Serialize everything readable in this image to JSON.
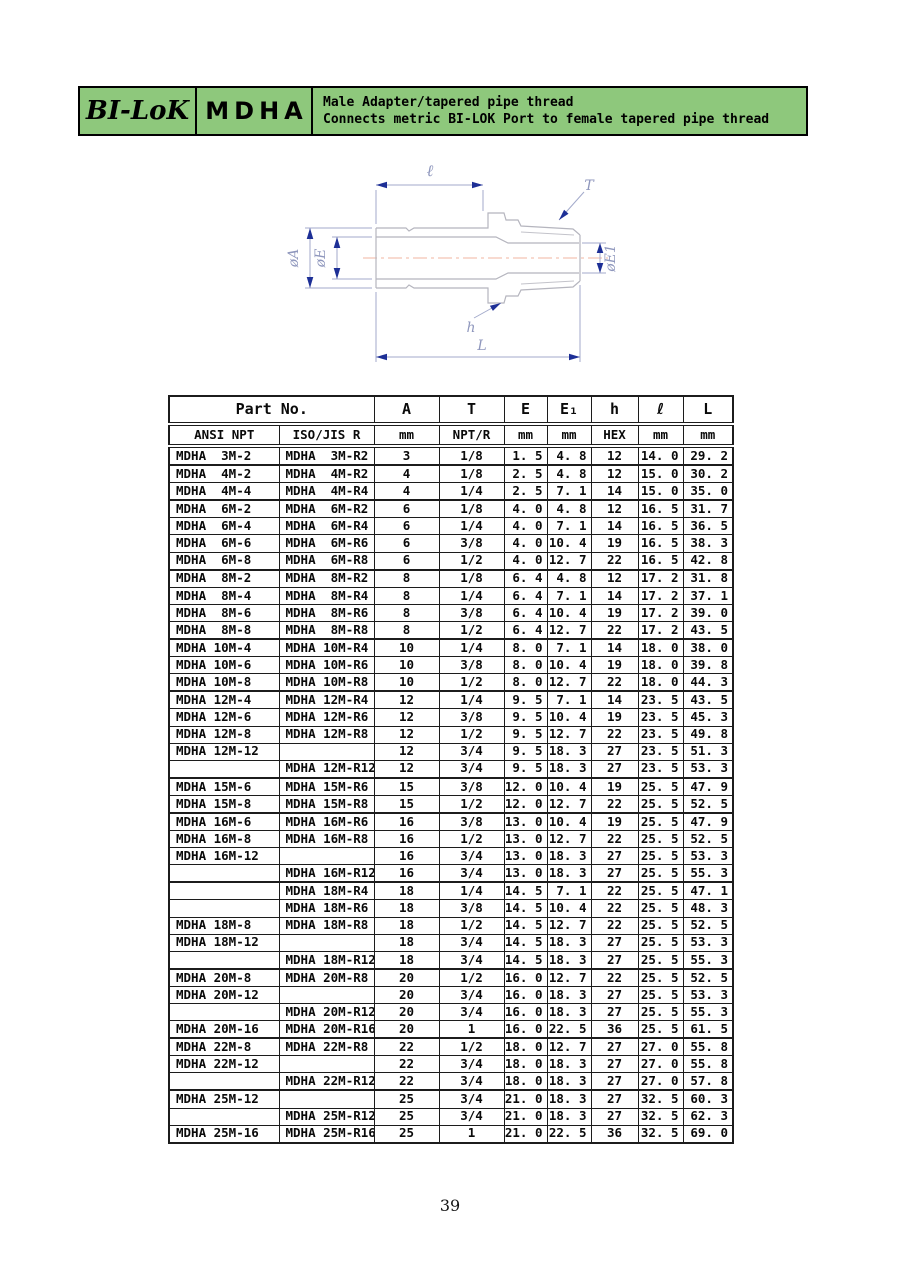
{
  "banner": {
    "brand": "BI-LoK",
    "model": "MDHA",
    "title_line1": "Male Adapter/tapered pipe thread",
    "title_line2": "Connects metric BI-LOK Port to female tapered pipe thread",
    "bg_color": "#8ec87c"
  },
  "drawing": {
    "labels": {
      "ell": "ℓ",
      "T": "T",
      "dA": "øA",
      "dE": "øE",
      "dE1": "øE1",
      "h": "h",
      "L": "L"
    },
    "colors": {
      "outline": "#b5b5be",
      "dimension": "#a3aacb",
      "arrow": "#1d2f96",
      "label": "#8f97bd",
      "centerline": "#f2b5a0"
    }
  },
  "table": {
    "header": {
      "part_no": "Part No.",
      "columns": [
        "A",
        "T",
        "E",
        "E₁",
        "h",
        "ℓ",
        "L"
      ],
      "subheader": [
        "ANSI NPT",
        "ISO/JIS R",
        "mm",
        "NPT/R",
        "mm",
        "mm",
        "HEX",
        "mm",
        "mm"
      ]
    },
    "groups": [
      [
        [
          "MDHA  3M-2",
          "MDHA  3M-R2",
          "3",
          "1/8",
          "1. 5",
          "4. 8",
          "12",
          "14. 0",
          "29. 2"
        ]
      ],
      [
        [
          "MDHA  4M-2",
          "MDHA  4M-R2",
          "4",
          "1/8",
          "2. 5",
          "4. 8",
          "12",
          "15. 0",
          "30. 2"
        ],
        [
          "MDHA  4M-4",
          "MDHA  4M-R4",
          "4",
          "1/4",
          "2. 5",
          "7. 1",
          "14",
          "15. 0",
          "35. 0"
        ]
      ],
      [
        [
          "MDHA  6M-2",
          "MDHA  6M-R2",
          "6",
          "1/8",
          "4. 0",
          "4. 8",
          "12",
          "16. 5",
          "31. 7"
        ],
        [
          "MDHA  6M-4",
          "MDHA  6M-R4",
          "6",
          "1/4",
          "4. 0",
          "7. 1",
          "14",
          "16. 5",
          "36. 5"
        ],
        [
          "MDHA  6M-6",
          "MDHA  6M-R6",
          "6",
          "3/8",
          "4. 0",
          "10. 4",
          "19",
          "16. 5",
          "38. 3"
        ],
        [
          "MDHA  6M-8",
          "MDHA  6M-R8",
          "6",
          "1/2",
          "4. 0",
          "12. 7",
          "22",
          "16. 5",
          "42. 8"
        ]
      ],
      [
        [
          "MDHA  8M-2",
          "MDHA  8M-R2",
          "8",
          "1/8",
          "6. 4",
          "4. 8",
          "12",
          "17. 2",
          "31. 8"
        ],
        [
          "MDHA  8M-4",
          "MDHA  8M-R4",
          "8",
          "1/4",
          "6. 4",
          "7. 1",
          "14",
          "17. 2",
          "37. 1"
        ],
        [
          "MDHA  8M-6",
          "MDHA  8M-R6",
          "8",
          "3/8",
          "6. 4",
          "10. 4",
          "19",
          "17. 2",
          "39. 0"
        ],
        [
          "MDHA  8M-8",
          "MDHA  8M-R8",
          "8",
          "1/2",
          "6. 4",
          "12. 7",
          "22",
          "17. 2",
          "43. 5"
        ]
      ],
      [
        [
          "MDHA 10M-4",
          "MDHA 10M-R4",
          "10",
          "1/4",
          "8. 0",
          "7. 1",
          "14",
          "18. 0",
          "38. 0"
        ],
        [
          "MDHA 10M-6",
          "MDHA 10M-R6",
          "10",
          "3/8",
          "8. 0",
          "10. 4",
          "19",
          "18. 0",
          "39. 8"
        ],
        [
          "MDHA 10M-8",
          "MDHA 10M-R8",
          "10",
          "1/2",
          "8. 0",
          "12. 7",
          "22",
          "18. 0",
          "44. 3"
        ]
      ],
      [
        [
          "MDHA 12M-4",
          "MDHA 12M-R4",
          "12",
          "1/4",
          "9. 5",
          "7. 1",
          "14",
          "23. 5",
          "43. 5"
        ],
        [
          "MDHA 12M-6",
          "MDHA 12M-R6",
          "12",
          "3/8",
          "9. 5",
          "10. 4",
          "19",
          "23. 5",
          "45. 3"
        ],
        [
          "MDHA 12M-8",
          "MDHA 12M-R8",
          "12",
          "1/2",
          "9. 5",
          "12. 7",
          "22",
          "23. 5",
          "49. 8"
        ],
        [
          "MDHA 12M-12",
          "",
          "12",
          "3/4",
          "9. 5",
          "18. 3",
          "27",
          "23. 5",
          "51. 3"
        ],
        [
          "",
          "MDHA 12M-R12",
          "12",
          "3/4",
          "9. 5",
          "18. 3",
          "27",
          "23. 5",
          "53. 3"
        ]
      ],
      [
        [
          "MDHA 15M-6",
          "MDHA 15M-R6",
          "15",
          "3/8",
          "12. 0",
          "10. 4",
          "19",
          "25. 5",
          "47. 9"
        ],
        [
          "MDHA 15M-8",
          "MDHA 15M-R8",
          "15",
          "1/2",
          "12. 0",
          "12. 7",
          "22",
          "25. 5",
          "52. 5"
        ]
      ],
      [
        [
          "MDHA 16M-6",
          "MDHA 16M-R6",
          "16",
          "3/8",
          "13. 0",
          "10. 4",
          "19",
          "25. 5",
          "47. 9"
        ],
        [
          "MDHA 16M-8",
          "MDHA 16M-R8",
          "16",
          "1/2",
          "13. 0",
          "12. 7",
          "22",
          "25. 5",
          "52. 5"
        ],
        [
          "MDHA 16M-12",
          "",
          "16",
          "3/4",
          "13. 0",
          "18. 3",
          "27",
          "25. 5",
          "53. 3"
        ],
        [
          "",
          "MDHA 16M-R12",
          "16",
          "3/4",
          "13. 0",
          "18. 3",
          "27",
          "25. 5",
          "55. 3"
        ]
      ],
      [
        [
          "",
          "MDHA 18M-R4",
          "18",
          "1/4",
          "14. 5",
          "7. 1",
          "22",
          "25. 5",
          "47. 1"
        ],
        [
          "",
          "MDHA 18M-R6",
          "18",
          "3/8",
          "14. 5",
          "10. 4",
          "22",
          "25. 5",
          "48. 3"
        ],
        [
          "MDHA 18M-8",
          "MDHA 18M-R8",
          "18",
          "1/2",
          "14. 5",
          "12. 7",
          "22",
          "25. 5",
          "52. 5"
        ],
        [
          "MDHA 18M-12",
          "",
          "18",
          "3/4",
          "14. 5",
          "18. 3",
          "27",
          "25. 5",
          "53. 3"
        ],
        [
          "",
          "MDHA 18M-R12",
          "18",
          "3/4",
          "14. 5",
          "18. 3",
          "27",
          "25. 5",
          "55. 3"
        ]
      ],
      [
        [
          "MDHA 20M-8",
          "MDHA 20M-R8",
          "20",
          "1/2",
          "16. 0",
          "12. 7",
          "22",
          "25. 5",
          "52. 5"
        ],
        [
          "MDHA 20M-12",
          "",
          "20",
          "3/4",
          "16. 0",
          "18. 3",
          "27",
          "25. 5",
          "53. 3"
        ],
        [
          "",
          "MDHA 20M-R12",
          "20",
          "3/4",
          "16. 0",
          "18. 3",
          "27",
          "25. 5",
          "55. 3"
        ],
        [
          "MDHA 20M-16",
          "MDHA 20M-R16",
          "20",
          "1",
          "16. 0",
          "22. 5",
          "36",
          "25. 5",
          "61. 5"
        ]
      ],
      [
        [
          "MDHA 22M-8",
          "MDHA 22M-R8",
          "22",
          "1/2",
          "18. 0",
          "12. 7",
          "27",
          "27. 0",
          "55. 8"
        ],
        [
          "MDHA 22M-12",
          "",
          "22",
          "3/4",
          "18. 0",
          "18. 3",
          "27",
          "27. 0",
          "55. 8"
        ],
        [
          "",
          "MDHA 22M-R12",
          "22",
          "3/4",
          "18. 0",
          "18. 3",
          "27",
          "27. 0",
          "57. 8"
        ]
      ],
      [
        [
          "MDHA 25M-12",
          "",
          "25",
          "3/4",
          "21. 0",
          "18. 3",
          "27",
          "32. 5",
          "60. 3"
        ],
        [
          "",
          "MDHA 25M-R12",
          "25",
          "3/4",
          "21. 0",
          "18. 3",
          "27",
          "32. 5",
          "62. 3"
        ],
        [
          "MDHA 25M-16",
          "MDHA 25M-R16",
          "25",
          "1",
          "21. 0",
          "22. 5",
          "36",
          "32. 5",
          "69. 0"
        ]
      ]
    ]
  },
  "page": {
    "number": "39"
  }
}
